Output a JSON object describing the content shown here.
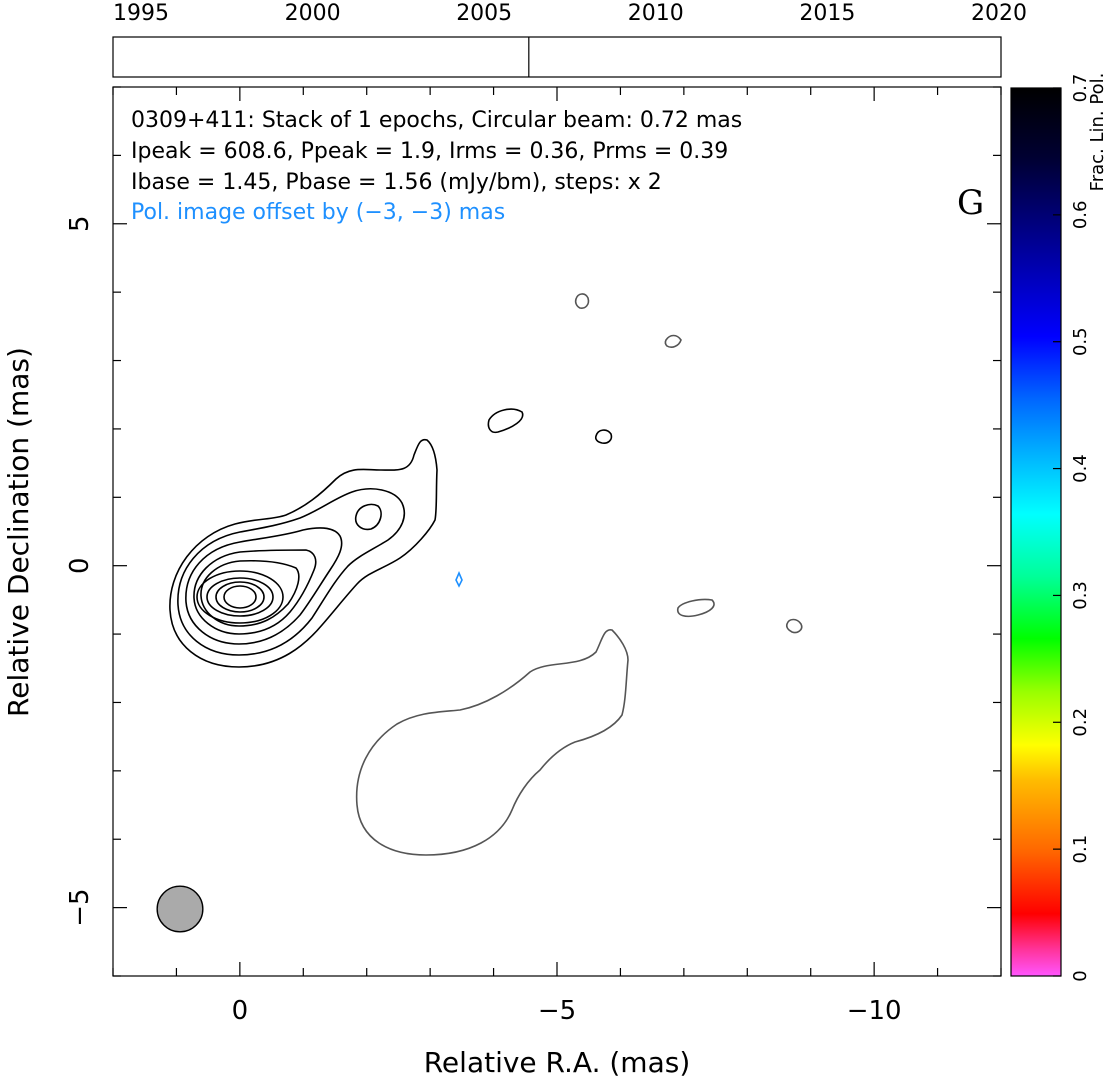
{
  "chart_data": {
    "type": "contour",
    "header_lines": [
      "0309+411: Stack of 1 epochs, Circular beam: 0.72 mas",
      "Ipeak = 608.6, Ppeak = 1.9, Irms = 0.36, Prms = 0.39",
      "Ibase = 1.45, Pbase = 1.56 (mJy/bm), steps: x 2"
    ],
    "offset_note": "Pol. image offset by (−3, −3) mas",
    "panel_letter": "G",
    "xlabel": "Relative R.A. (mas)",
    "ylabel": "Relative Declination (mas)",
    "xlim": [
      2,
      -12
    ],
    "ylim": [
      -6,
      7
    ],
    "x_ticks": [
      0,
      -5,
      -10
    ],
    "x_tick_labels": [
      "0",
      "−5",
      "−10"
    ],
    "y_ticks": [
      5,
      0,
      -5
    ],
    "y_tick_labels": [
      "5",
      "0",
      "−5"
    ],
    "epoch_years": [
      "1995",
      "2000",
      "2005",
      "2010",
      "2015",
      "2020"
    ],
    "epoch_marker_year": 2006.3,
    "colorbar": {
      "label": "Frac. Lin. Pol.",
      "range": [
        0,
        0.7
      ],
      "ticks": [
        "0",
        "0.1",
        "0.2",
        "0.3",
        "0.4",
        "0.5",
        "0.6",
        "0.7"
      ]
    },
    "beam_diameter_mas": 0.72,
    "colors": {
      "total_intensity": "#000000",
      "polarization_contour": "#555555",
      "offset_note": "#1e90ff",
      "beam_fill": "#aaaaaa"
    }
  }
}
